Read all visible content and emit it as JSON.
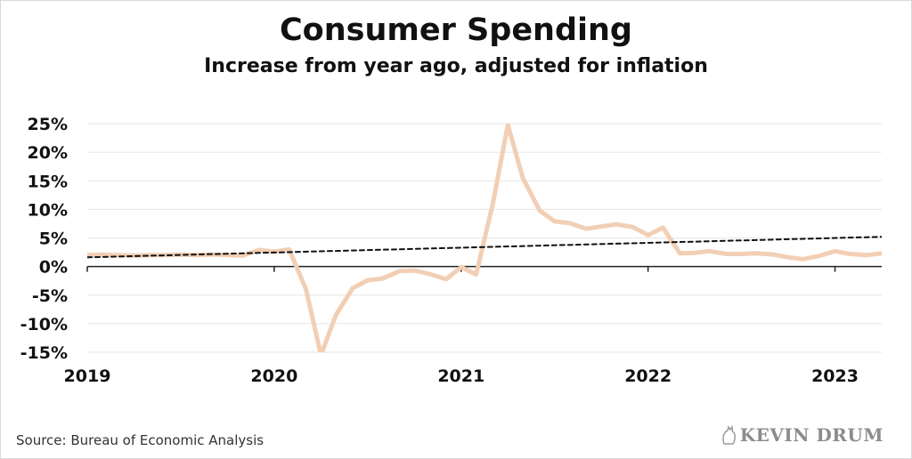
{
  "chart_data": {
    "type": "line",
    "title": "Consumer Spending",
    "subtitle": "Increase from year ago, adjusted for inflation",
    "ylim": [
      -15,
      25
    ],
    "yticks": [
      -15,
      -10,
      -5,
      0,
      5,
      10,
      15,
      20,
      25
    ],
    "ytick_labels": [
      "-15%",
      "-10%",
      "-5%",
      "0%",
      "5%",
      "10%",
      "15%",
      "20%",
      "25%"
    ],
    "x_ticks": [
      "2019",
      "2020",
      "2021",
      "2022",
      "2023"
    ],
    "x_range": [
      2019.0,
      2023.25
    ],
    "grid": true,
    "series": [
      {
        "color": "#f2cfb4",
        "x": [
          2019.0,
          2019.08,
          2019.17,
          2019.25,
          2019.33,
          2019.42,
          2019.5,
          2019.58,
          2019.67,
          2019.75,
          2019.83,
          2019.92,
          2020.0,
          2020.08,
          2020.17,
          2020.25,
          2020.33,
          2020.42,
          2020.5,
          2020.58,
          2020.67,
          2020.75,
          2020.83,
          2020.92,
          2021.0,
          2021.08,
          2021.17,
          2021.25,
          2021.33,
          2021.42,
          2021.5,
          2021.58,
          2021.67,
          2021.75,
          2021.83,
          2021.92,
          2022.0,
          2022.08,
          2022.17,
          2022.25,
          2022.33,
          2022.42,
          2022.5,
          2022.58,
          2022.67,
          2022.75,
          2022.83,
          2022.92,
          2023.0,
          2023.08,
          2023.17,
          2023.25
        ],
        "y": [
          2.0,
          2.1,
          2.0,
          1.9,
          2.0,
          2.0,
          2.1,
          2.0,
          2.1,
          2.0,
          1.9,
          2.9,
          2.6,
          3.0,
          -4.0,
          -15.5,
          -8.5,
          -3.8,
          -2.4,
          -2.1,
          -0.8,
          -0.7,
          -1.3,
          -2.2,
          -0.1,
          -1.4,
          11.0,
          24.8,
          15.5,
          9.8,
          7.9,
          7.6,
          6.6,
          7.0,
          7.4,
          6.9,
          5.5,
          6.8,
          2.3,
          2.4,
          2.7,
          2.2,
          2.2,
          2.3,
          2.1,
          1.6,
          1.3,
          1.9,
          2.7,
          2.2,
          2.0,
          2.3
        ]
      },
      {
        "style": "dashed",
        "color": "#111111",
        "x": [
          2019.0,
          2023.25
        ],
        "y": [
          1.6,
          5.2
        ]
      }
    ]
  },
  "source": "Source: Bureau of Economic Analysis",
  "logo_text": "KEVIN DRUM"
}
